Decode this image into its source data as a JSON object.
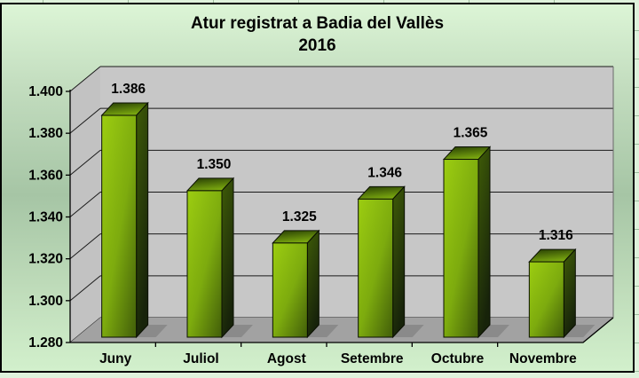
{
  "chart_data": {
    "type": "bar",
    "style": "3d-column",
    "title": "Atur registrat a Badia del Vallès",
    "subtitle": "2016",
    "categories": [
      "Juny",
      "Juliol",
      "Agost",
      "Setembre",
      "Octubre",
      "Novembre"
    ],
    "values": [
      1386,
      1350,
      1325,
      1346,
      1365,
      1316
    ],
    "value_labels": [
      "1.386",
      "1.350",
      "1.325",
      "1.346",
      "1.365",
      "1.316"
    ],
    "y_tick_labels": [
      "1.400",
      "1.380",
      "1.360",
      "1.340",
      "1.320",
      "1.300",
      "1.280"
    ],
    "y_tick_values": [
      1400,
      1380,
      1360,
      1340,
      1320,
      1300,
      1280
    ],
    "ylim": [
      1280,
      1400
    ],
    "y_step": 20,
    "xlabel": "",
    "ylabel": "",
    "grid": true,
    "legend": "none",
    "colors": {
      "bar_front_light": "#9ccd11",
      "bar_front_mid": "#7dab0e",
      "bar_front_dark": "#47650a",
      "bar_side_light": "#3f5c08",
      "bar_side_dark": "#17230a",
      "bar_top_light": "#7fae10",
      "bar_top_dark": "#2a4204",
      "bar_outline": "#0a0f02",
      "back_wall": "#c7c7c7",
      "side_wall": "#c2c2c2",
      "floor": "#a2a2a2",
      "bar_shadow": "#8a8a8a",
      "gridline": "#1a1a1a",
      "axis": "#000000",
      "text": "#000000",
      "bg_top": "#dcf5d6",
      "bg_mid": "#a6c5a5",
      "bg_bottom": "#d2f0cc",
      "frame_border": "#000000"
    }
  }
}
